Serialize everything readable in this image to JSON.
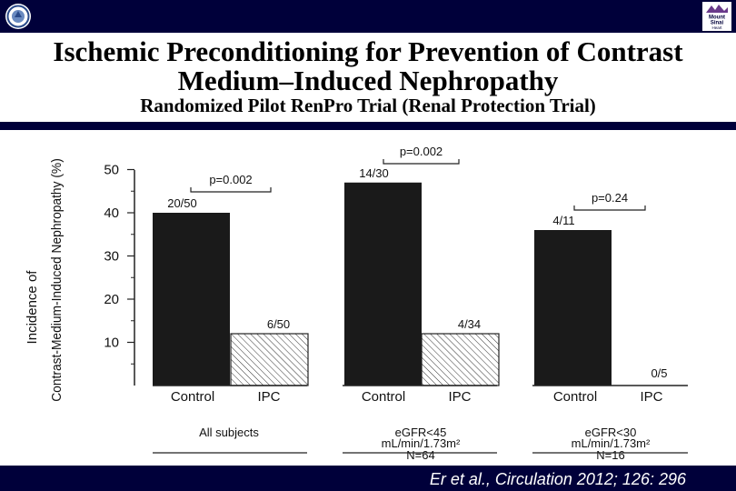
{
  "header": {
    "title_line1": "Ischemic Preconditioning for Prevention of Contrast",
    "title_line2": "Medium–Induced Nephropathy",
    "subtitle": "Randomized Pilot RenPro Trial (Renal Protection Trial)",
    "logo_right_text": [
      "Mount",
      "Sinai",
      "Heart"
    ]
  },
  "footer": {
    "citation": "Er et al., Circulation 2012; 126: 296"
  },
  "colors": {
    "bar_background": "#00003a",
    "control_bar": "#1a1a1a",
    "ipc_hatch": "#333333"
  },
  "chart_data": {
    "type": "bar",
    "ylabel_line1": "Incidence of",
    "ylabel_line2": "Contrast-Medium-Induced Nephropathy (%)",
    "ylim": [
      0,
      50
    ],
    "yticks": [
      "10",
      "20",
      "30",
      "40",
      "50"
    ],
    "groups": [
      {
        "label": "All subjects",
        "bars": [
          {
            "category": "Control",
            "value": 40,
            "label": "20/50",
            "fill": "solid"
          },
          {
            "category": "IPC",
            "value": 12,
            "label": "6/50",
            "fill": "hatch"
          }
        ],
        "p_value": "p=0.002"
      },
      {
        "label": "eGFR<45",
        "label_line2": "mL/min/1.73m²",
        "label_line3": "N=64",
        "bars": [
          {
            "category": "Control",
            "value": 47,
            "label": "14/30",
            "fill": "solid"
          },
          {
            "category": "IPC",
            "value": 12,
            "label": "4/34",
            "fill": "hatch"
          }
        ],
        "p_value": "p=0.002"
      },
      {
        "label": "eGFR<30",
        "label_line2": "mL/min/1.73m²",
        "label_line3": "N=16",
        "bars": [
          {
            "category": "Control",
            "value": 36,
            "label": "4/11",
            "fill": "solid"
          },
          {
            "category": "IPC",
            "value": 0,
            "label": "0/5",
            "fill": "hatch"
          }
        ],
        "p_value": "p=0.24"
      }
    ]
  }
}
